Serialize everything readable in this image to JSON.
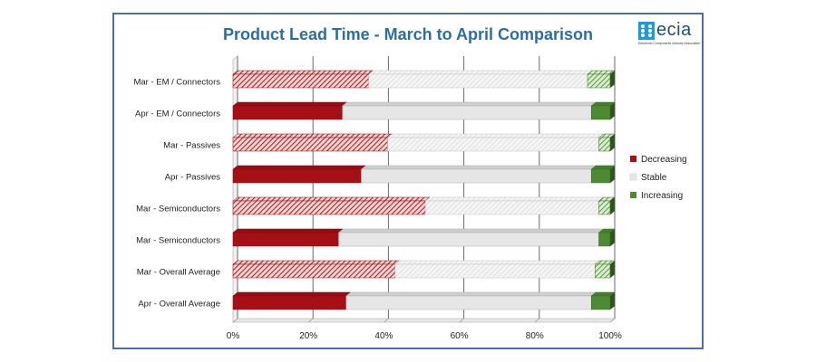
{
  "chart_data": {
    "type": "bar",
    "stacked": true,
    "orientation": "horizontal",
    "percent_stacked": true,
    "title": "Product Lead Time - March to April Comparison",
    "categories": [
      "Mar - EM / Connectors",
      "Apr - EM / Connectors",
      "Mar - Passives",
      "Apr - Passives",
      "Mar - Semiconductors",
      "Mar - Semiconductors",
      "Mar - Overall Average",
      "Apr - Overall Average"
    ],
    "series": [
      {
        "name": "Decreasing",
        "color": "#a50f15",
        "values": [
          36,
          29,
          41,
          34,
          51,
          28,
          43,
          30
        ]
      },
      {
        "name": "Stable",
        "color": "#e6e6e6",
        "values": [
          58,
          66,
          56,
          61,
          46,
          69,
          53,
          65
        ]
      },
      {
        "name": "Increasing",
        "color": "#4e8a33",
        "values": [
          6,
          5,
          3,
          5,
          3,
          3,
          4,
          5
        ]
      }
    ],
    "hatched_categories": [
      0,
      2,
      4,
      6
    ],
    "xlim": [
      0,
      100
    ],
    "xticks": [
      "0%",
      "20%",
      "40%",
      "60%",
      "80%",
      "100%"
    ],
    "grid": true,
    "legend_position": "right"
  },
  "logo": {
    "text": "ecia",
    "subtitle": "Electronic Components Industry Association"
  }
}
